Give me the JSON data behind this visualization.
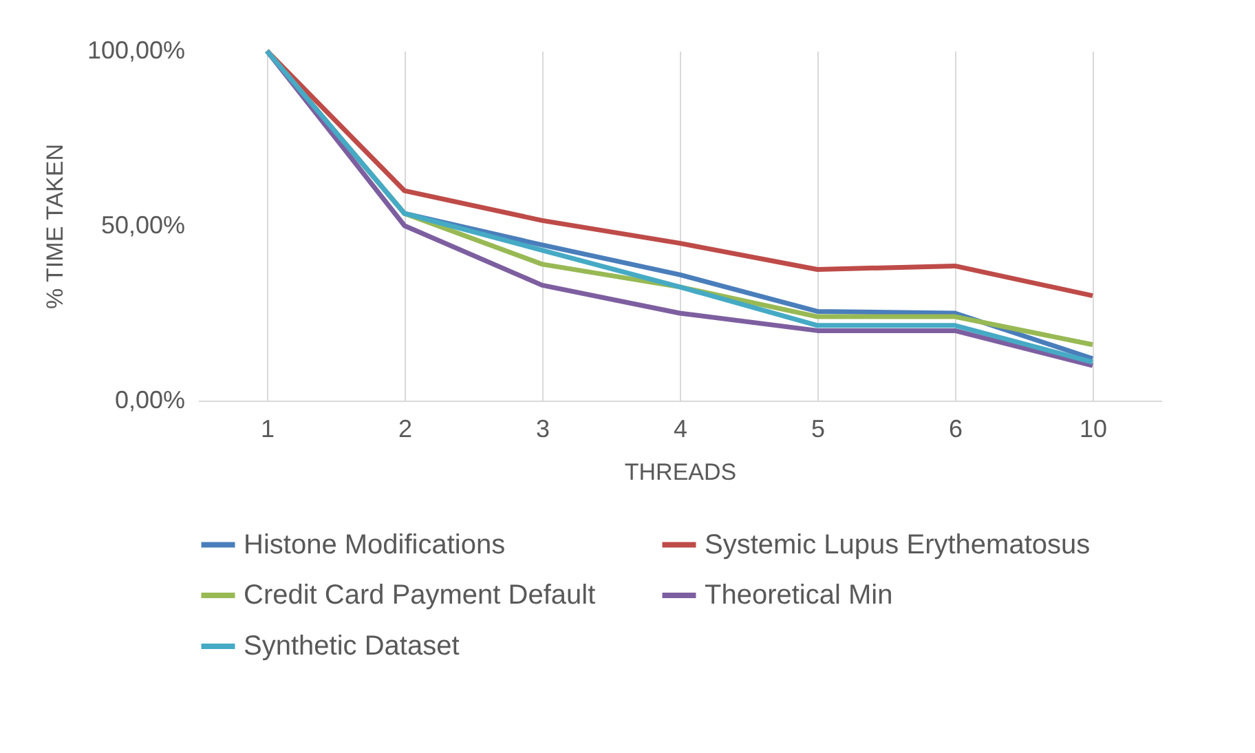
{
  "chart_data": {
    "type": "line",
    "xlabel": "THREADS",
    "ylabel": "% TIME TAKEN",
    "categories": [
      "1",
      "2",
      "3",
      "4",
      "5",
      "6",
      "10"
    ],
    "series": [
      {
        "name": "Histone Modifications",
        "color": "#4a7ebb",
        "values": [
          100,
          53.5,
          44.5,
          36,
          25.5,
          25,
          12
        ]
      },
      {
        "name": "Systemic Lupus Erythematosus",
        "color": "#be4b48",
        "values": [
          100,
          60,
          51.5,
          45,
          37.5,
          38.5,
          30
        ]
      },
      {
        "name": "Credit Card Payment Default",
        "color": "#98b954",
        "values": [
          100,
          53.5,
          39,
          32.5,
          24,
          24,
          16
        ]
      },
      {
        "name": "Theoretical Min",
        "color": "#7d5fa0",
        "values": [
          100,
          50,
          33,
          25,
          20,
          20,
          10
        ]
      },
      {
        "name": "Synthetic Dataset",
        "color": "#46aac5",
        "values": [
          100,
          53.5,
          43,
          32.5,
          21.5,
          21.5,
          11
        ]
      }
    ],
    "ylim": [
      0,
      100
    ],
    "yticks": [
      {
        "value": 0,
        "label": "0,00%"
      },
      {
        "value": 50,
        "label": "50,00%"
      },
      {
        "value": 100,
        "label": "100,00%"
      }
    ],
    "grid": "x",
    "legend": "bottom",
    "marker": "none",
    "line_style": "solid"
  }
}
